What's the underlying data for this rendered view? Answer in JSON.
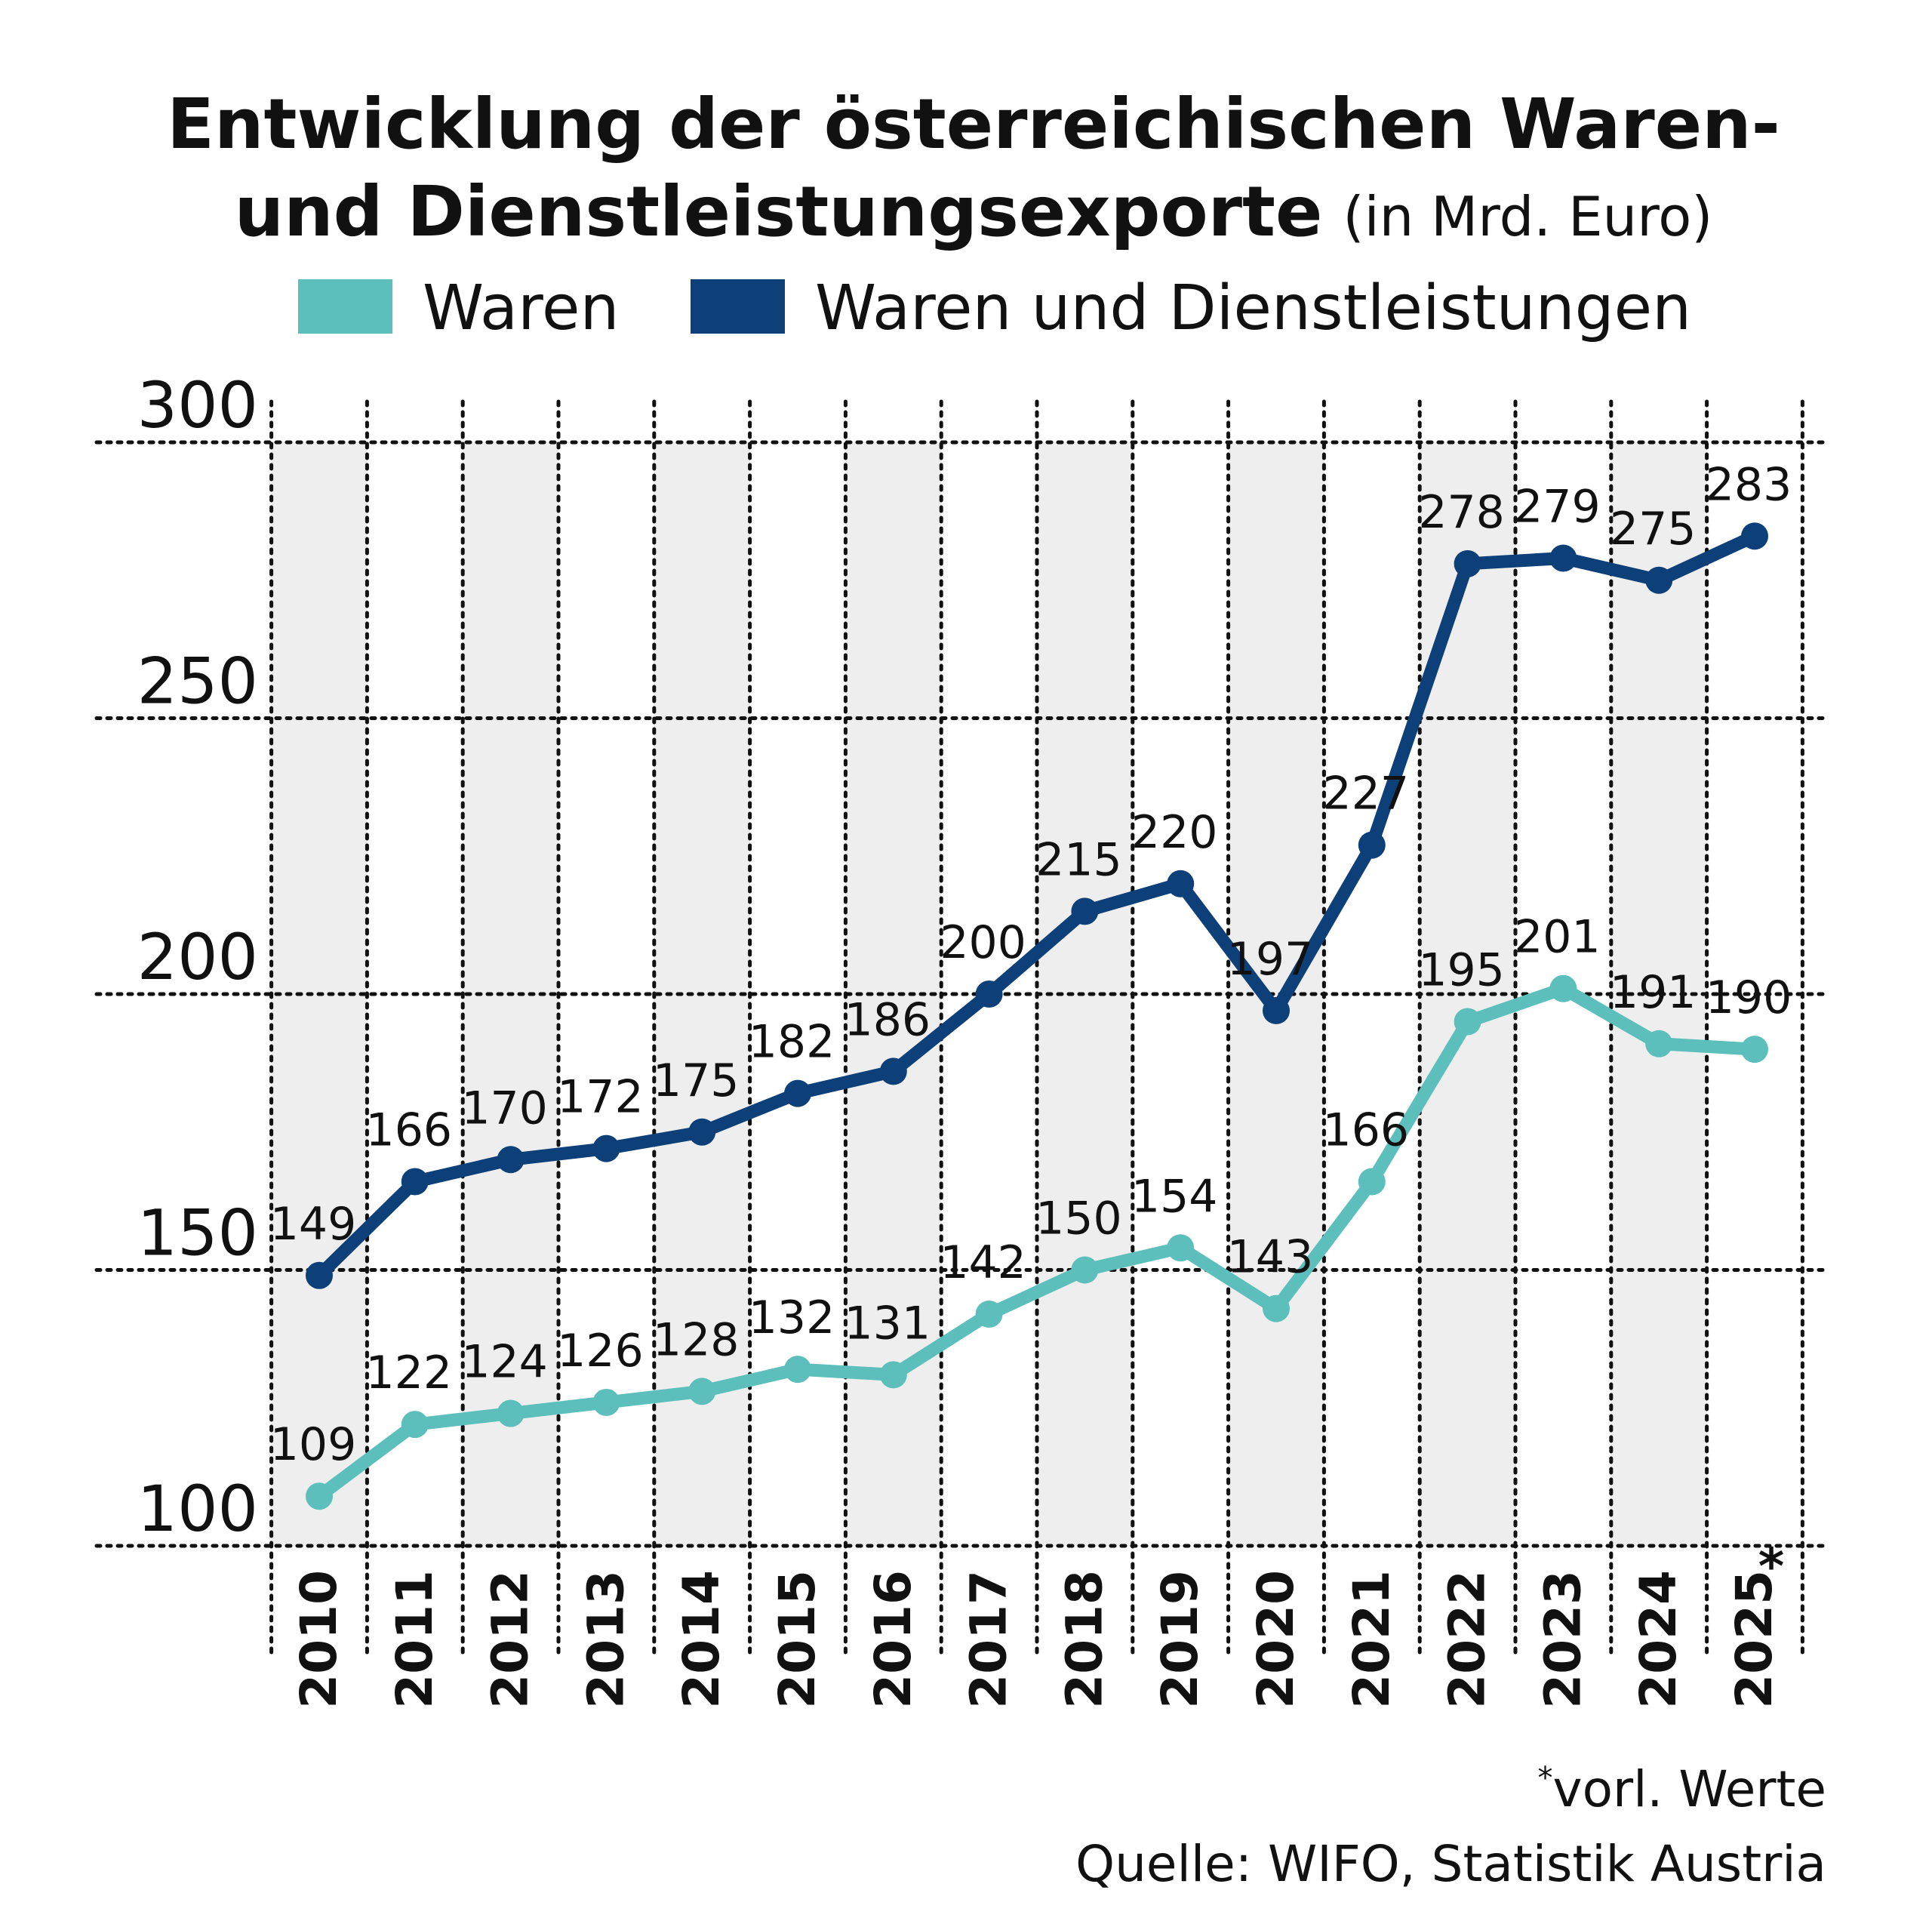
{
  "chart_data": {
    "type": "line",
    "title_line1": "Entwicklung der österreichischen Waren-",
    "title_line2": "und Dienstleistungsexporte",
    "title_unit": "(in Mrd. Euro)",
    "categories": [
      "2010",
      "2011",
      "2012",
      "2013",
      "2014",
      "2015",
      "2016",
      "2017",
      "2018",
      "2019",
      "2020",
      "2021",
      "2022",
      "2023",
      "2024",
      "2025*"
    ],
    "x_tick_labels": [
      "2010",
      "2011",
      "2012",
      "2013",
      "2014",
      "2015",
      "2016",
      "2017",
      "2018",
      "2019",
      "2020",
      "2021",
      "2022",
      "2023",
      "2024",
      "2025"
    ],
    "footnote_marker": "*",
    "ylim": [
      100,
      300
    ],
    "yticks": [
      100,
      150,
      200,
      250,
      300
    ],
    "grid": true,
    "legend_position": "top",
    "series": [
      {
        "name": "Waren",
        "color": "#5cbfbb",
        "values": [
          109,
          122,
          124,
          126,
          128,
          132,
          131,
          142,
          150,
          154,
          143,
          166,
          195,
          201,
          191,
          190
        ]
      },
      {
        "name": "Waren und Dienstleistungen",
        "color": "#0d3f78",
        "values": [
          149,
          166,
          170,
          172,
          175,
          182,
          186,
          200,
          215,
          220,
          197,
          227,
          278,
          279,
          275,
          283
        ]
      }
    ]
  },
  "footer": {
    "note": "vorl. Werte",
    "source": "Quelle: WIFO, Statistik Austria"
  },
  "colors": {
    "band": "#eeeeee",
    "grid": "#111111"
  }
}
